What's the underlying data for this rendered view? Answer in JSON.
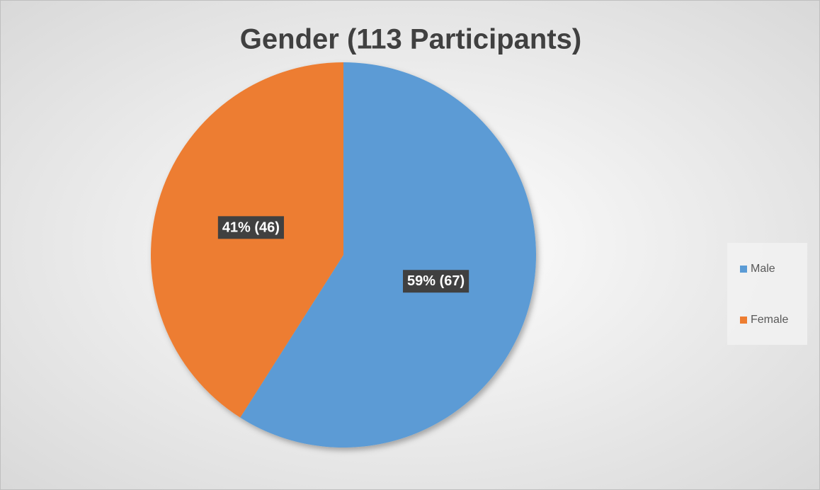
{
  "chart_data": {
    "type": "pie",
    "title": "Gender (113 Participants)",
    "categories": [
      "Male",
      "Female"
    ],
    "values": [
      59,
      41
    ],
    "value_labels": [
      "59% (67)",
      "41% (46)"
    ],
    "colors": [
      "#5b9bd5",
      "#ed7d31"
    ],
    "legend": "right"
  }
}
